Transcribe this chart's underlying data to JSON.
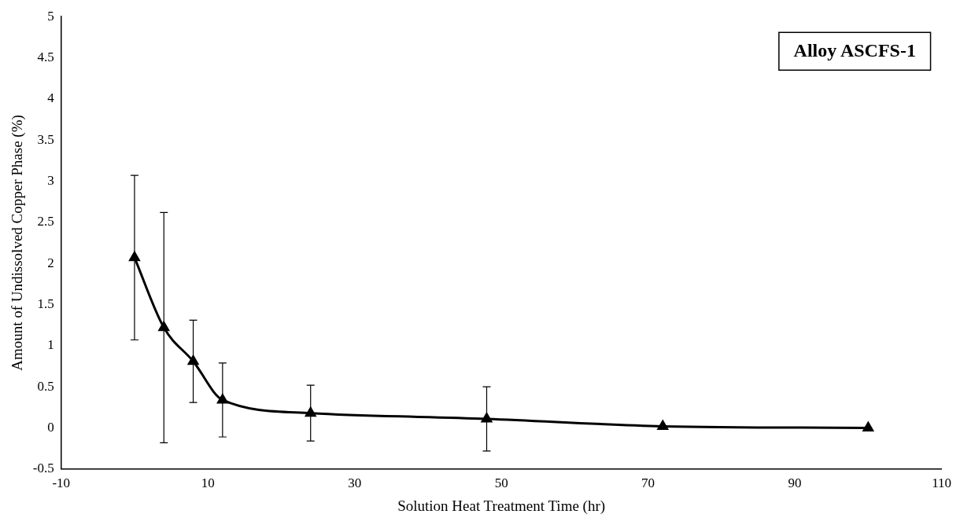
{
  "chart_data": {
    "type": "line",
    "xlabel": "Solution Heat Treatment Time (hr)",
    "ylabel": "Amount of Undissolved Copper Phase (%)",
    "annotations": [
      "Alloy ASCFS-1"
    ],
    "x": [
      0,
      4,
      8,
      12,
      24,
      48,
      72,
      100
    ],
    "series": [
      {
        "color": "#000000",
        "values": [
          2.07,
          1.22,
          0.81,
          0.34,
          0.18,
          0.11,
          0.02,
          0
        ],
        "errors": [
          1,
          1.4,
          0.5,
          0.45,
          0.34,
          0.39,
          null,
          null
        ]
      }
    ],
    "xlim": [
      -10,
      110
    ],
    "xticks": [
      -10,
      10,
      30,
      50,
      70,
      90,
      110
    ],
    "ylim": [
      -0.5,
      5
    ],
    "yticks": [
      -0.5,
      0,
      0.5,
      1,
      1.5,
      2,
      2.5,
      3,
      3.5,
      4,
      4.5,
      5
    ],
    "grid": false,
    "legend": false,
    "marker": "triangle",
    "line_style": "solid"
  }
}
